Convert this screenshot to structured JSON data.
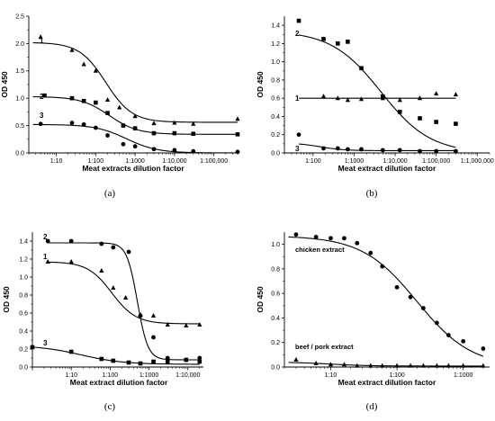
{
  "chart_data": [
    {
      "type": "scatter",
      "panel_label": "(a)",
      "xlabel": "Meat extracts dilution factor",
      "ylabel": "OD 450",
      "x_scale": "log",
      "xlim": [
        2,
        400000
      ],
      "ylim": [
        0,
        2.5
      ],
      "xticks": [
        {
          "v": 10,
          "label": "1:10"
        },
        {
          "v": 100,
          "label": "1:100"
        },
        {
          "v": 1000,
          "label": "1:1000"
        },
        {
          "v": 10000,
          "label": "1:10,000"
        },
        {
          "v": 100000,
          "label": "1:100,000"
        }
      ],
      "yticks": [
        0.0,
        0.5,
        1.0,
        1.5,
        2.0,
        2.5
      ],
      "series": [
        {
          "name": "1",
          "marker": "triangle",
          "points": [
            [
              4,
              2.12
            ],
            [
              25,
              1.88
            ],
            [
              50,
              1.62
            ],
            [
              100,
              1.5
            ],
            [
              200,
              0.97
            ],
            [
              400,
              0.83
            ],
            [
              1000,
              0.67
            ],
            [
              3000,
              0.54
            ],
            [
              10000,
              0.55
            ],
            [
              30000,
              0.53
            ],
            [
              400000,
              0.62
            ]
          ],
          "curve": {
            "top": 2.02,
            "bottom": 0.56,
            "ec50": 180,
            "hill": 1.3
          }
        },
        {
          "name": "2",
          "marker": "square",
          "points": [
            [
              5,
              1.05
            ],
            [
              25,
              1.0
            ],
            [
              50,
              0.95
            ],
            [
              100,
              0.92
            ],
            [
              200,
              0.73
            ],
            [
              500,
              0.5
            ],
            [
              1000,
              0.45
            ],
            [
              3000,
              0.36
            ],
            [
              10000,
              0.36
            ],
            [
              30000,
              0.35
            ],
            [
              400000,
              0.34
            ]
          ],
          "curve": {
            "top": 1.03,
            "bottom": 0.34,
            "ec50": 220,
            "hill": 1.2
          }
        },
        {
          "name": "3",
          "marker": "circle",
          "points": [
            [
              4,
              0.53
            ],
            [
              25,
              0.55
            ],
            [
              50,
              0.52
            ],
            [
              100,
              0.46
            ],
            [
              200,
              0.32
            ],
            [
              500,
              0.16
            ],
            [
              1000,
              0.12
            ],
            [
              3000,
              0.07
            ],
            [
              10000,
              0.05
            ],
            [
              30000,
              0.03
            ],
            [
              400000,
              0.02
            ]
          ],
          "curve": {
            "top": 0.52,
            "bottom": 0.0,
            "ec50": 600,
            "hill": 1.1
          }
        }
      ]
    },
    {
      "type": "scatter",
      "panel_label": "(b)",
      "xlabel": "Meat extract dilution factor",
      "ylabel": "OD 450",
      "x_scale": "log",
      "xlim": [
        20,
        2000000
      ],
      "ylim": [
        0,
        1.5
      ],
      "xticks": [
        {
          "v": 100,
          "label": "1:100"
        },
        {
          "v": 1000,
          "label": "1:1000"
        },
        {
          "v": 10000,
          "label": "1:10,000"
        },
        {
          "v": 100000,
          "label": "1:100,000"
        },
        {
          "v": 1000000,
          "label": "1:1,000,000"
        }
      ],
      "yticks": [
        0.0,
        0.2,
        0.4,
        0.6,
        0.8,
        1.0,
        1.2,
        1.4
      ],
      "series": [
        {
          "name": "2",
          "marker": "square",
          "points": [
            [
              45,
              1.45
            ],
            [
              180,
              1.25
            ],
            [
              400,
              1.2
            ],
            [
              700,
              1.22
            ],
            [
              1500,
              0.93
            ],
            [
              5000,
              0.62
            ],
            [
              13000,
              0.45
            ],
            [
              40000,
              0.38
            ],
            [
              100000,
              0.34
            ],
            [
              300000,
              0.32
            ]
          ],
          "curve": {
            "top": 1.34,
            "bottom": 0.0,
            "ec50": 4500,
            "hill": 0.72
          }
        },
        {
          "name": "1",
          "marker": "triangle",
          "points": [
            [
              180,
              0.62
            ],
            [
              400,
              0.6
            ],
            [
              700,
              0.58
            ],
            [
              1500,
              0.59
            ],
            [
              5000,
              0.6
            ],
            [
              13000,
              0.58
            ],
            [
              40000,
              0.6
            ],
            [
              100000,
              0.65
            ],
            [
              300000,
              0.64
            ]
          ],
          "curve": {
            "flat": 0.6
          }
        },
        {
          "name": "3",
          "marker": "circle",
          "points": [
            [
              45,
              0.2
            ],
            [
              180,
              0.05
            ],
            [
              400,
              0.05
            ],
            [
              700,
              0.04
            ],
            [
              1500,
              0.04
            ],
            [
              5000,
              0.03
            ],
            [
              13000,
              0.03
            ],
            [
              40000,
              0.02
            ],
            [
              100000,
              0.02
            ],
            [
              300000,
              0.02
            ]
          ],
          "curve": {
            "top": 0.11,
            "bottom": 0.025,
            "ec50": 150,
            "hill": 1.5
          }
        }
      ]
    },
    {
      "type": "scatter",
      "panel_label": "(c)",
      "xlabel": "Meat extract dilution factor",
      "ylabel": "OD 450",
      "x_scale": "log",
      "xlim": [
        1,
        25000
      ],
      "ylim": [
        0,
        1.5
      ],
      "xticks": [
        {
          "v": 10,
          "label": "1:10"
        },
        {
          "v": 100,
          "label": "1:100"
        },
        {
          "v": 1000,
          "label": "1:1000"
        },
        {
          "v": 10000,
          "label": "1:10,000"
        }
      ],
      "yticks": [
        0.0,
        0.2,
        0.4,
        0.6,
        0.8,
        1.0,
        1.2,
        1.4
      ],
      "series": [
        {
          "name": "2",
          "marker": "circle",
          "points": [
            [
              2.5,
              1.4
            ],
            [
              10,
              1.4
            ],
            [
              60,
              1.37
            ],
            [
              120,
              1.33
            ],
            [
              300,
              1.28
            ],
            [
              600,
              0.57
            ],
            [
              1300,
              0.33
            ],
            [
              3000,
              0.1
            ],
            [
              9000,
              0.08
            ],
            [
              20000,
              0.1
            ]
          ],
          "curve": {
            "top": 1.38,
            "bottom": 0.08,
            "ec50": 500,
            "hill": 3.2
          }
        },
        {
          "name": "1",
          "marker": "triangle",
          "points": [
            [
              2.5,
              1.17
            ],
            [
              10,
              1.17
            ],
            [
              60,
              1.07
            ],
            [
              120,
              0.88
            ],
            [
              250,
              0.77
            ],
            [
              600,
              0.58
            ],
            [
              1300,
              0.57
            ],
            [
              3000,
              0.47
            ],
            [
              9000,
              0.46
            ],
            [
              20000,
              0.47
            ]
          ],
          "curve": {
            "top": 1.17,
            "bottom": 0.48,
            "ec50": 110,
            "hill": 1.4
          }
        },
        {
          "name": "3",
          "marker": "square",
          "points": [
            [
              1,
              0.22
            ],
            [
              10,
              0.17
            ],
            [
              60,
              0.09
            ],
            [
              120,
              0.07
            ],
            [
              300,
              0.05
            ],
            [
              600,
              0.04
            ],
            [
              1300,
              0.06
            ],
            [
              3000,
              0.06
            ],
            [
              9000,
              0.08
            ],
            [
              20000,
              0.06
            ]
          ],
          "curve": {
            "top": 0.24,
            "bottom": 0.03,
            "ec50": 18,
            "hill": 0.8
          }
        }
      ]
    },
    {
      "type": "scatter",
      "panel_label": "(d)",
      "xlabel": "Meat extract dilution factor",
      "ylabel": "OD 450",
      "x_scale": "log",
      "xlim": [
        2,
        2500
      ],
      "ylim": [
        0,
        1.1
      ],
      "xticks": [
        {
          "v": 10,
          "label": "1:10"
        },
        {
          "v": 100,
          "label": "1:100"
        },
        {
          "v": 1000,
          "label": "1:1000"
        }
      ],
      "yticks": [
        0.0,
        0.2,
        0.4,
        0.6,
        0.8,
        1.0
      ],
      "annotations": [
        "chicken extract",
        "beef / pork extract"
      ],
      "series": [
        {
          "name": "chicken extract",
          "marker": "circle",
          "points": [
            [
              3,
              1.08
            ],
            [
              6,
              1.06
            ],
            [
              10,
              1.05
            ],
            [
              16,
              1.05
            ],
            [
              25,
              1.01
            ],
            [
              40,
              0.93
            ],
            [
              60,
              0.82
            ],
            [
              100,
              0.65
            ],
            [
              160,
              0.57
            ],
            [
              250,
              0.48
            ],
            [
              400,
              0.36
            ],
            [
              600,
              0.26
            ],
            [
              1000,
              0.21
            ],
            [
              2000,
              0.15
            ]
          ],
          "curve": {
            "top": 1.07,
            "bottom": 0.0,
            "ec50": 200,
            "hill": 1.05
          }
        },
        {
          "name": "beef / pork extract",
          "marker": "triangle",
          "points": [
            [
              3,
              0.06
            ],
            [
              6,
              0.03
            ],
            [
              10,
              0.02
            ],
            [
              16,
              0.02
            ],
            [
              25,
              0.01
            ],
            [
              40,
              0.01
            ],
            [
              60,
              0.01
            ],
            [
              100,
              0.01
            ],
            [
              160,
              0.01
            ],
            [
              250,
              0.01
            ],
            [
              400,
              0.01
            ],
            [
              600,
              0.01
            ],
            [
              1000,
              0.01
            ],
            [
              2000,
              0.01
            ]
          ],
          "curve": {
            "top": 0.04,
            "bottom": 0.008,
            "ec50": 10,
            "hill": 1.5
          }
        }
      ]
    }
  ]
}
